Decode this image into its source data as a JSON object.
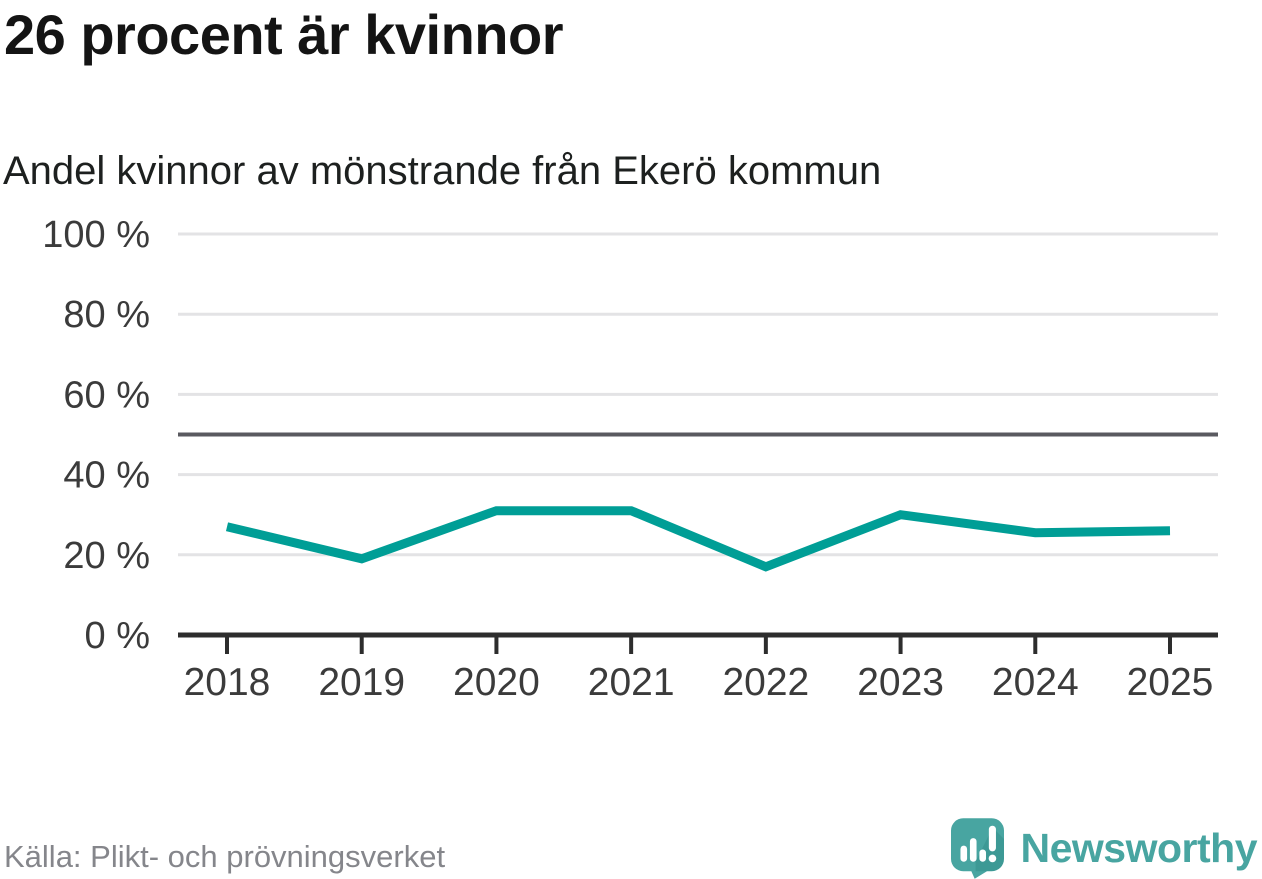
{
  "header": {
    "title": "26 procent är kvinnor",
    "subtitle": "Andel kvinnor av mönstrande från Ekerö kommun"
  },
  "chart_data": {
    "type": "line",
    "title": "26 procent är kvinnor",
    "subtitle": "Andel kvinnor av mönstrande från Ekerö kommun",
    "categories": [
      "2018",
      "2019",
      "2020",
      "2021",
      "2022",
      "2023",
      "2024",
      "2025"
    ],
    "series": [
      {
        "name": "Andel kvinnor av mönstrande",
        "values": [
          27,
          19,
          31,
          31,
          17,
          30,
          25.5,
          26
        ]
      }
    ],
    "ylim": [
      0,
      100
    ],
    "yticks": [
      {
        "value": 0,
        "label": "0 %"
      },
      {
        "value": 20,
        "label": "20 %"
      },
      {
        "value": 40,
        "label": "40 %"
      },
      {
        "value": 60,
        "label": "60 %"
      },
      {
        "value": 80,
        "label": "80 %"
      },
      {
        "value": 100,
        "label": "100 %"
      }
    ],
    "reference_line": {
      "value": 50
    },
    "grid": "horizontal",
    "legend": "none"
  },
  "footer": {
    "source": "Källa: Plikt- och prövningsverket",
    "logo_text": "Newsworthy"
  },
  "colors": {
    "background": "#ffffff",
    "series_line": "#009e96",
    "gridline": "#e3e3e5",
    "axis": "#2d2d2d",
    "reference_line": "#5a5a60",
    "tick_label": "#3b3b3b",
    "title_text": "#141414",
    "subtitle_text": "#1d201f",
    "source_text": "#85868b",
    "brand_teal": "#48a5a1"
  }
}
